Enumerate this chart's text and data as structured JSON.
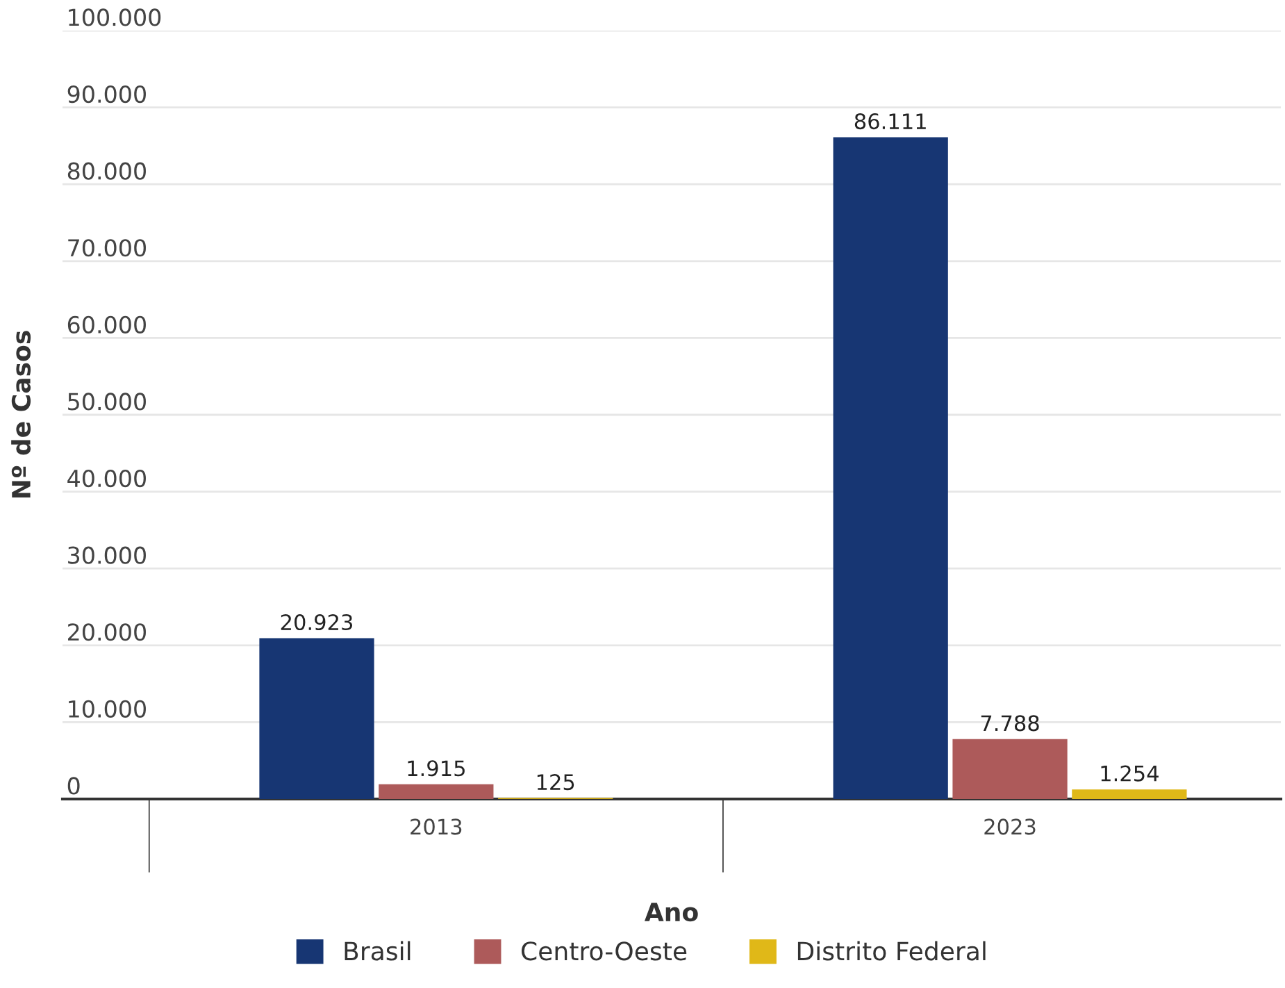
{
  "chart_data": {
    "type": "bar",
    "xlabel": "Ano",
    "ylabel": "Nº de Casos",
    "categories": [
      "2013",
      "2023"
    ],
    "series": [
      {
        "name": "Brasil",
        "color": "#173673",
        "values": [
          20923,
          86111
        ],
        "value_labels": [
          "20.923",
          "86.111"
        ]
      },
      {
        "name": "Centro-Oeste",
        "color": "#ad5a5a",
        "values": [
          1915,
          7788
        ],
        "value_labels": [
          "1.915",
          "7.788"
        ]
      },
      {
        "name": "Distrito Federal",
        "color": "#e0b818",
        "values": [
          125,
          1254
        ],
        "value_labels": [
          "125",
          "1.254"
        ]
      }
    ],
    "ylim": [
      0,
      100000
    ],
    "yticks": [
      0,
      {
        "value": 10000,
        "label": "10.000"
      },
      {
        "value": 20000,
        "label": "20.000"
      },
      {
        "value": 30000,
        "label": "30.000"
      },
      {
        "value": 40000,
        "label": "40.000"
      },
      {
        "value": 50000,
        "label": "50.000"
      },
      {
        "value": 60000,
        "label": "60.000"
      },
      {
        "value": 70000,
        "label": "70.000"
      },
      {
        "value": 80000,
        "label": "80.000"
      },
      {
        "value": 90000,
        "label": "90.000"
      },
      {
        "value": 100000,
        "label": "100.000"
      }
    ],
    "grid": "y",
    "legend": "bottom"
  }
}
